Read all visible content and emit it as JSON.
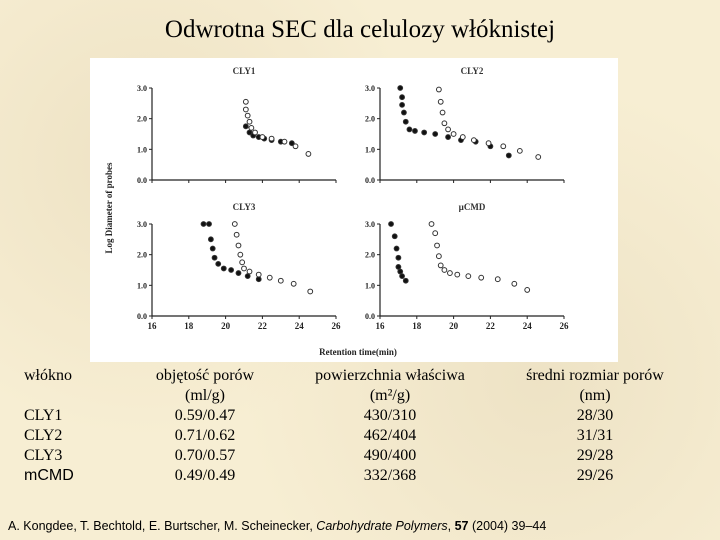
{
  "title": "Odwrotna SEC dla celulozy włóknistej",
  "table": {
    "headers": [
      [
        "włókno"
      ],
      [
        "objętość porów",
        "(ml/g)"
      ],
      [
        "powierzchnia właściwa",
        "(m²/g)"
      ],
      [
        "średni rozmiar porów",
        "(nm)"
      ]
    ],
    "rows": [
      [
        "CLY1",
        "0.59/0.47",
        "430/310",
        "28/30"
      ],
      [
        "CLY2",
        "0.71/0.62",
        "462/404",
        "31/31"
      ],
      [
        "CLY3",
        "0.70/0.57",
        "490/400",
        "29/28"
      ],
      [
        "mCMD",
        "0.49/0.49",
        "332/368",
        "29/26"
      ]
    ]
  },
  "source": {
    "authors": "A. Kongdee, T. Bechtold, E. Burtscher, M. Scheinecker,",
    "journal": "Carbohydrate Polymers",
    "volume": "57",
    "rest": "(2004) 39–44"
  },
  "chart_data": {
    "type": "scatter",
    "xlabel": "Retention time(min)",
    "ylabel": "Log Diameter of probes",
    "xlim": [
      16,
      26
    ],
    "ylim": [
      0,
      3
    ],
    "xticks": [
      "16",
      "18",
      "20",
      "22",
      "24",
      "26"
    ],
    "yticks": [
      "0.0",
      "1.0",
      "2.0",
      "3.0"
    ],
    "panels": [
      {
        "title": "CLY1",
        "series": [
          {
            "marker": "filled",
            "x": [
              21.1,
              21.3,
              21.5,
              21.8,
              22.1,
              22.5,
              23.0,
              23.6
            ],
            "y": [
              1.75,
              1.55,
              1.45,
              1.4,
              1.35,
              1.3,
              1.25,
              1.2
            ]
          },
          {
            "marker": "open",
            "x": [
              21.1,
              21.1,
              21.2,
              21.3,
              21.4,
              21.6,
              22.0,
              22.5,
              23.2,
              23.8,
              24.5
            ],
            "y": [
              2.55,
              2.3,
              2.1,
              1.9,
              1.7,
              1.55,
              1.4,
              1.35,
              1.25,
              1.1,
              0.85
            ]
          }
        ]
      },
      {
        "title": "CLY2",
        "series": [
          {
            "marker": "filled",
            "x": [
              17.1,
              17.2,
              17.2,
              17.3,
              17.4,
              17.6,
              17.9,
              18.4,
              19.0,
              19.7,
              20.4,
              21.2,
              22.0,
              23.0
            ],
            "y": [
              3.0,
              2.7,
              2.45,
              2.2,
              1.9,
              1.65,
              1.6,
              1.55,
              1.5,
              1.4,
              1.3,
              1.25,
              1.1,
              0.8
            ]
          },
          {
            "marker": "open",
            "x": [
              19.2,
              19.3,
              19.4,
              19.5,
              19.7,
              20.0,
              20.5,
              21.1,
              21.9,
              22.7,
              23.6,
              24.6
            ],
            "y": [
              2.95,
              2.55,
              2.2,
              1.85,
              1.65,
              1.5,
              1.4,
              1.3,
              1.2,
              1.1,
              0.95,
              0.75
            ]
          }
        ]
      },
      {
        "title": "CLY3",
        "series": [
          {
            "marker": "filled",
            "x": [
              18.8,
              19.1,
              19.2,
              19.3,
              19.4,
              19.6,
              19.9,
              20.3,
              20.7,
              21.2,
              21.8
            ],
            "y": [
              3.0,
              3.0,
              2.5,
              2.2,
              1.9,
              1.7,
              1.55,
              1.5,
              1.4,
              1.3,
              1.2
            ]
          },
          {
            "marker": "open",
            "x": [
              20.5,
              20.6,
              20.7,
              20.8,
              20.9,
              21.0,
              21.3,
              21.8,
              22.4,
              23.0,
              23.7,
              24.6
            ],
            "y": [
              3.0,
              2.65,
              2.3,
              2.0,
              1.75,
              1.55,
              1.45,
              1.35,
              1.25,
              1.15,
              1.05,
              0.8
            ]
          }
        ]
      },
      {
        "title": "µCMD",
        "series": [
          {
            "marker": "filled",
            "x": [
              16.6,
              16.8,
              16.9,
              17.0,
              17.0,
              17.1,
              17.2,
              17.4
            ],
            "y": [
              3.0,
              2.6,
              2.2,
              1.9,
              1.6,
              1.45,
              1.3,
              1.15
            ]
          },
          {
            "marker": "open",
            "x": [
              18.8,
              19.0,
              19.1,
              19.2,
              19.3,
              19.5,
              19.8,
              20.2,
              20.8,
              21.5,
              22.4,
              23.3,
              24.0
            ],
            "y": [
              3.0,
              2.7,
              2.3,
              1.95,
              1.65,
              1.5,
              1.4,
              1.35,
              1.3,
              1.25,
              1.2,
              1.05,
              0.85
            ]
          }
        ]
      }
    ]
  }
}
